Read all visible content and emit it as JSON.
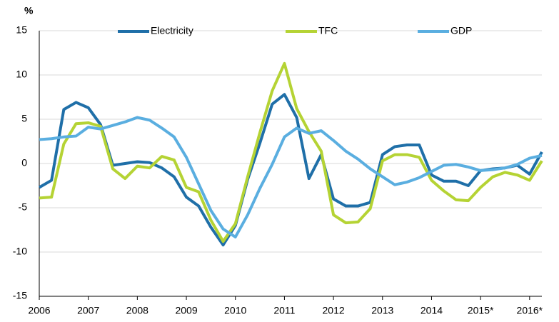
{
  "chart_data": {
    "type": "line",
    "y_label": "%",
    "x": [
      2006,
      2006.25,
      2006.5,
      2006.75,
      2007,
      2007.25,
      2007.5,
      2007.75,
      2008,
      2008.25,
      2008.5,
      2008.75,
      2009,
      2009.25,
      2009.5,
      2009.75,
      2010,
      2010.25,
      2010.5,
      2010.75,
      2011,
      2011.25,
      2011.5,
      2011.75,
      2012,
      2012.25,
      2012.5,
      2012.75,
      2013,
      2013.25,
      2013.5,
      2013.75,
      2014,
      2014.25,
      2014.5,
      2014.75,
      2015,
      2015.25,
      2015.5,
      2015.75,
      2016,
      2016.25
    ],
    "series": [
      {
        "name": "Electricity",
        "color": "#1f6fa8",
        "values": [
          -2.7,
          -1.9,
          6.1,
          6.9,
          6.3,
          4.4,
          -0.2,
          0,
          0.2,
          0.1,
          -0.5,
          -1.5,
          -3.8,
          -4.8,
          -7.2,
          -9.2,
          -7,
          -1.8,
          2.3,
          6.7,
          7.8,
          5.2,
          -1.7,
          1,
          -4,
          -4.8,
          -4.8,
          -4.4,
          1,
          1.9,
          2.1,
          2.1,
          -1.3,
          -2,
          -2,
          -2.5,
          -0.8,
          -0.6,
          -0.5,
          -0.2,
          -1.2,
          1.3
        ]
      },
      {
        "name": "TFC",
        "color": "#b5d334",
        "values": [
          -3.9,
          -3.8,
          2.2,
          4.5,
          4.6,
          4.2,
          -0.6,
          -1.7,
          -0.3,
          -0.5,
          0.8,
          0.4,
          -2.7,
          -3.2,
          -6.4,
          -8.8,
          -6.8,
          -1.5,
          3.5,
          8.2,
          11.3,
          6.2,
          3.6,
          1.4,
          -5.8,
          -6.7,
          -6.6,
          -5.1,
          0.3,
          1,
          1,
          0.7,
          -1.9,
          -3.1,
          -4.1,
          -4.2,
          -2.7,
          -1.5,
          -1,
          -1.3,
          -1.9,
          0.3
        ]
      },
      {
        "name": "GDP",
        "color": "#5aaee0",
        "values": [
          2.7,
          2.8,
          3.0,
          3.1,
          4.1,
          3.9,
          4.3,
          4.7,
          5.2,
          4.9,
          4.0,
          3.0,
          0.7,
          -2.3,
          -5.3,
          -7.4,
          -8.3,
          -5.8,
          -2.8,
          -0.1,
          3.0,
          4.0,
          3.4,
          3.7,
          2.6,
          1.4,
          0.5,
          -0.6,
          -1.5,
          -2.4,
          -2.1,
          -1.6,
          -0.9,
          -0.2,
          -0.1,
          -0.4,
          -0.8,
          -0.7,
          -0.5,
          -0.1,
          0.6,
          0.9
        ]
      }
    ],
    "xlim": [
      2006,
      2016.25
    ],
    "xticks": [
      2006,
      2007,
      2008,
      2009,
      2010,
      2011,
      2012,
      2013,
      2014,
      {
        "value": 2015,
        "label": "2015*"
      },
      {
        "value": 2016,
        "label": "2016*"
      }
    ],
    "ylim": [
      -15,
      15
    ],
    "yticks": [
      -15,
      -10,
      -5,
      0,
      5,
      10,
      15
    ],
    "grid": true
  }
}
